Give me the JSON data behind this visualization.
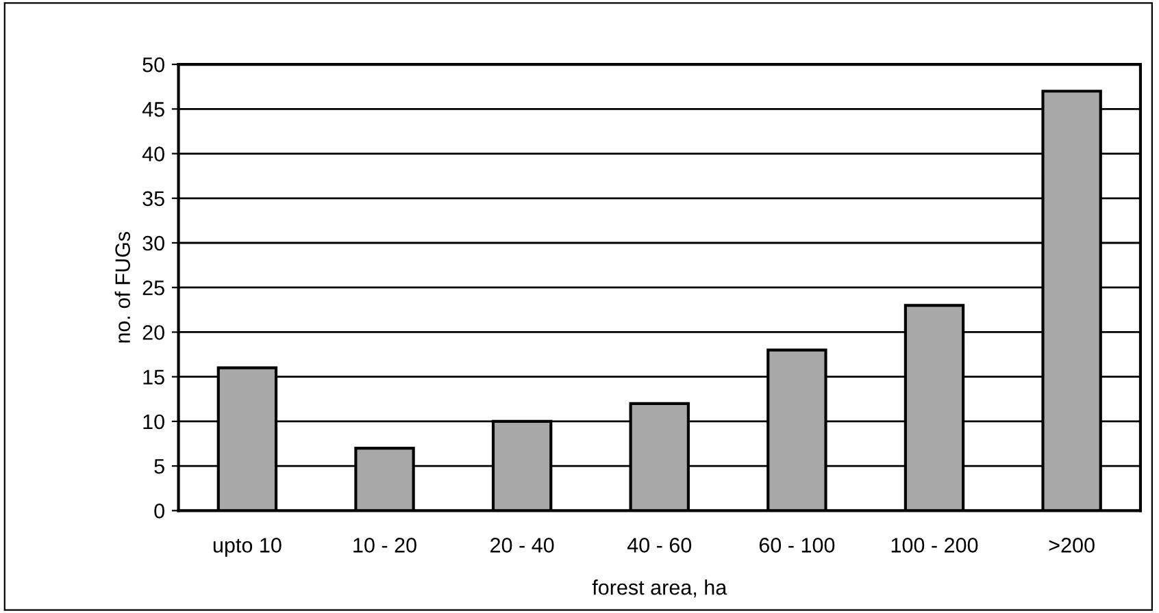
{
  "chart_data": {
    "type": "bar",
    "xlabel": "forest area, ha",
    "ylabel": "no. of FUGs",
    "categories": [
      "upto 10",
      "10 - 20",
      "20 - 40",
      "40 - 60",
      "60 - 100",
      "100 - 200",
      ">200"
    ],
    "values": [
      16,
      7,
      10,
      12,
      18,
      23,
      47
    ],
    "color": "#a8a8a8",
    "ylim": [
      0,
      50
    ],
    "yticks": [
      0,
      5,
      10,
      15,
      20,
      25,
      30,
      35,
      40,
      45,
      50
    ],
    "grid": "y",
    "legend": false
  }
}
